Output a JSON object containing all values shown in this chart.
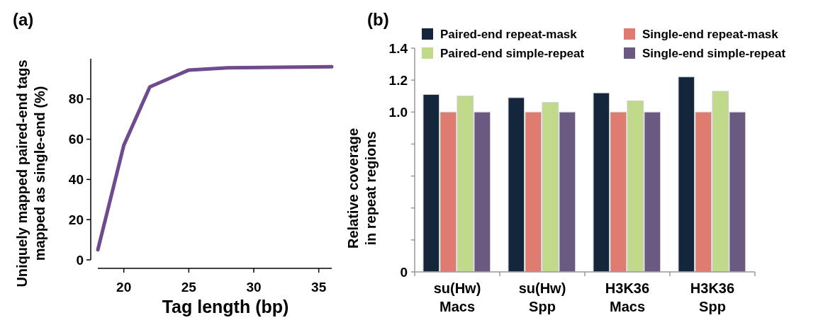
{
  "chart_data": [
    {
      "type": "line",
      "title": "(a)",
      "xlabel": "Tag length (bp)",
      "ylabel": "Uniquely mapped paired-end tags\nmapped as single-end (%)",
      "x": [
        18,
        20,
        22,
        25,
        28,
        32,
        36
      ],
      "series": [
        {
          "color": "#6f4a8e",
          "values": [
            5,
            57,
            86,
            94.4,
            95.5,
            95.8,
            96
          ]
        }
      ],
      "xlim": [
        18,
        36
      ],
      "xticks": [
        20,
        25,
        30,
        35
      ],
      "ylim": [
        0,
        100
      ],
      "yticks": [
        0,
        20,
        40,
        60,
        80
      ],
      "marker": "none",
      "line_style": "solid",
      "grid": false
    },
    {
      "type": "bar",
      "title": "(b)",
      "ylabel": "Relative coverage\nin repeat regions",
      "categories": [
        "su(Hw)\nMacs",
        "su(Hw)\nSpp",
        "H3K36\nMacs",
        "H3K36\nSpp"
      ],
      "series": [
        {
          "name": "Paired-end repeat-mask",
          "color": "#13263b",
          "values": [
            1.11,
            1.09,
            1.12,
            1.22
          ]
        },
        {
          "name": "Single-end repeat-mask",
          "color": "#e07b72",
          "values": [
            1.0,
            1.0,
            1.0,
            1.0
          ]
        },
        {
          "name": "Paired-end simple-repeat",
          "color": "#c0d98a",
          "values": [
            1.1,
            1.06,
            1.07,
            1.13
          ]
        },
        {
          "name": "Single-end simple-repeat",
          "color": "#6a5a82",
          "values": [
            1.0,
            1.0,
            1.0,
            1.0
          ]
        }
      ],
      "ylim": [
        0,
        1.4
      ],
      "yticks": [
        0,
        {
          "value": 0.2,
          "label": null
        },
        {
          "value": 0.4,
          "label": null
        },
        {
          "value": 0.6,
          "label": null
        },
        {
          "value": 0.8,
          "label": null
        },
        {
          "value": 1,
          "label": "1.0"
        },
        {
          "value": 1.2,
          "label": "1.2"
        },
        {
          "value": 1.4,
          "label": "1.4"
        }
      ],
      "grid": false,
      "legend": "top"
    }
  ]
}
